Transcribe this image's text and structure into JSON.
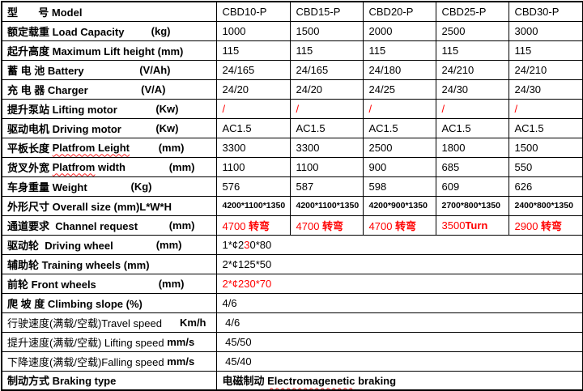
{
  "colors": {
    "accent_red": "#ff0000",
    "border": "#000000",
    "background": "#ffffff"
  },
  "table": {
    "models": [
      "CBD10-P",
      "CBD15-P",
      "CBD20-P",
      "CBD25-P",
      "CBD30-P"
    ],
    "rows": [
      {
        "name": "model-row",
        "label": [
          {
            "t": "型       号 Model",
            "b": 1
          }
        ],
        "cells": [
          [
            {
              "t": "CBD10-P"
            }
          ],
          [
            {
              "t": "CBD15-P"
            }
          ],
          [
            {
              "t": "CBD20-P"
            }
          ],
          [
            {
              "t": "CBD25-P"
            }
          ],
          [
            {
              "t": "CBD30-P"
            }
          ]
        ]
      },
      {
        "name": "load-capacity-row",
        "label": [
          {
            "t": "额定载重 Load Capacity",
            "b": 1
          }
        ],
        "unit": {
          "t": "(kg)",
          "b": 1
        },
        "cells": [
          [
            {
              "t": "1000"
            }
          ],
          [
            {
              "t": "1500"
            }
          ],
          [
            {
              "t": "2000"
            }
          ],
          [
            {
              "t": "2500"
            }
          ],
          [
            {
              "t": "3000"
            }
          ]
        ]
      },
      {
        "name": "lift-height-row",
        "label": [
          {
            "t": "起升高度 Maximum Lift height (mm)",
            "b": 1
          }
        ],
        "cells": [
          [
            {
              "t": "115"
            }
          ],
          [
            {
              "t": "115"
            }
          ],
          [
            {
              "t": "115"
            }
          ],
          [
            {
              "t": "115"
            }
          ],
          [
            {
              "t": "115"
            }
          ]
        ]
      },
      {
        "name": "battery-row",
        "label": [
          {
            "t": "蓄 电 池 Battery",
            "b": 1
          }
        ],
        "unit": {
          "t": "(V/Ah)",
          "b": 1
        },
        "cells": [
          [
            {
              "t": "24/165"
            }
          ],
          [
            {
              "t": "24/165"
            }
          ],
          [
            {
              "t": "24/180"
            }
          ],
          [
            {
              "t": "24/210"
            }
          ],
          [
            {
              "t": "24/210"
            }
          ]
        ]
      },
      {
        "name": "charger-row",
        "label": [
          {
            "t": "充 电 器 Charger",
            "b": 1
          }
        ],
        "unit": {
          "t": "(V/A)",
          "b": 1
        },
        "cells": [
          [
            {
              "t": "24/20"
            }
          ],
          [
            {
              "t": "24/20"
            }
          ],
          [
            {
              "t": "24/25"
            }
          ],
          [
            {
              "t": "24/30"
            }
          ],
          [
            {
              "t": "24/30"
            }
          ]
        ]
      },
      {
        "name": "lifting-motor-row",
        "label": [
          {
            "t": "提升泵站 Lifting motor",
            "b": 1
          }
        ],
        "unit": {
          "t": "(Kw)",
          "b": 1
        },
        "cells": [
          [
            {
              "t": "/",
              "red": 1
            }
          ],
          [
            {
              "t": "/",
              "red": 1
            }
          ],
          [
            {
              "t": "/",
              "red": 1
            }
          ],
          [
            {
              "t": "/",
              "red": 1
            }
          ],
          [
            {
              "t": "/",
              "red": 1
            }
          ]
        ]
      },
      {
        "name": "driving-motor-row",
        "label": [
          {
            "t": "驱动电机 Driving motor",
            "b": 1
          }
        ],
        "unit": {
          "t": "(Kw)",
          "b": 1
        },
        "cells": [
          [
            {
              "t": "AC1.5"
            }
          ],
          [
            {
              "t": "AC1.5"
            }
          ],
          [
            {
              "t": "AC1.5"
            }
          ],
          [
            {
              "t": "AC1.5"
            }
          ],
          [
            {
              "t": "AC1.5"
            }
          ]
        ]
      },
      {
        "name": "platform-length-row",
        "label": [
          {
            "t": "平板长度 ",
            "b": 1
          },
          {
            "t": "Platfrom Leight",
            "b": 1,
            "wavy": 1
          }
        ],
        "unit": {
          "t": "(mm)",
          "b": 1
        },
        "cells": [
          [
            {
              "t": "3300"
            }
          ],
          [
            {
              "t": "3300"
            }
          ],
          [
            {
              "t": "2500"
            }
          ],
          [
            {
              "t": "1800"
            }
          ],
          [
            {
              "t": "1500"
            }
          ]
        ]
      },
      {
        "name": "platform-width-row",
        "label": [
          {
            "t": "货叉外宽 ",
            "b": 1
          },
          {
            "t": "Platfrom",
            "b": 1,
            "wavy": 1
          },
          {
            "t": " width",
            "b": 1
          }
        ],
        "unit": {
          "t": "(mm)",
          "b": 1
        },
        "cells": [
          [
            {
              "t": "1100"
            }
          ],
          [
            {
              "t": "1100"
            }
          ],
          [
            {
              "t": "900"
            }
          ],
          [
            {
              "t": "685"
            }
          ],
          [
            {
              "t": "550"
            }
          ]
        ]
      },
      {
        "name": "weight-row",
        "label": [
          {
            "t": "车身重量 Weight",
            "b": 1
          }
        ],
        "unit": {
          "t": "(Kg)",
          "b": 1
        },
        "cells": [
          [
            {
              "t": "576"
            }
          ],
          [
            {
              "t": "587"
            }
          ],
          [
            {
              "t": "598"
            }
          ],
          [
            {
              "t": "609"
            }
          ],
          [
            {
              "t": "626"
            }
          ]
        ]
      },
      {
        "name": "overall-size-row",
        "label": [
          {
            "t": "外形尺寸 Overall size (mm)L*W*H",
            "b": 1
          }
        ],
        "small": 1,
        "cells": [
          [
            {
              "t": "4200*1100*1350",
              "b": 1
            }
          ],
          [
            {
              "t": "4200*1100*1350",
              "b": 1
            }
          ],
          [
            {
              "t": "4200*900*1350",
              "b": 1
            }
          ],
          [
            {
              "t": "2700*800*1350",
              "b": 1
            }
          ],
          [
            {
              "t": "2400*800*1350",
              "b": 1
            }
          ]
        ]
      },
      {
        "name": "channel-request-row",
        "label": [
          {
            "t": "通道要求  Channel request",
            "b": 1
          }
        ],
        "unit": {
          "t": "(mm)",
          "b": 1
        },
        "cells": [
          [
            {
              "t": "4700 ",
              "red": 1
            },
            {
              "t": "转弯",
              "red": 1,
              "b": 1
            }
          ],
          [
            {
              "t": "4700 ",
              "red": 1
            },
            {
              "t": "转弯",
              "red": 1,
              "b": 1
            }
          ],
          [
            {
              "t": "4700 ",
              "red": 1
            },
            {
              "t": "转弯",
              "red": 1,
              "b": 1
            }
          ],
          [
            {
              "t": "3500",
              "red": 1
            },
            {
              "t": "Turn",
              "red": 1,
              "b": 1
            }
          ],
          [
            {
              "t": "2900 ",
              "red": 1
            },
            {
              "t": "转弯",
              "red": 1,
              "b": 1
            }
          ]
        ]
      },
      {
        "name": "driving-wheel-row",
        "label": [
          {
            "t": "驱动轮  Driving wheel",
            "b": 1
          }
        ],
        "unit": {
          "t": "(mm)",
          "b": 1
        },
        "merged": [
          {
            "t": "1*¢2"
          },
          {
            "t": "3",
            "red": 1
          },
          {
            "t": "0*80"
          }
        ]
      },
      {
        "name": "training-wheels-row",
        "label": [
          {
            "t": "辅助轮 Training wheels (mm)",
            "b": 1
          }
        ],
        "merged": [
          {
            "t": "2*¢125*50"
          }
        ]
      },
      {
        "name": "front-wheels-row",
        "label": [
          {
            "t": "前轮 Front wheels",
            "b": 1
          }
        ],
        "unit": {
          "t": "(mm)",
          "b": 1
        },
        "merged": [
          {
            "t": "2*¢230*70",
            "red": 1
          }
        ]
      },
      {
        "name": "climbing-slope-row",
        "label": [
          {
            "t": "爬 坡 度 Climbing slope (%)",
            "b": 1
          }
        ],
        "merged": [
          {
            "t": "4/6"
          }
        ]
      },
      {
        "name": "travel-speed-row",
        "label": [
          {
            "t": "行驶速度(满载/空载)Travel speed"
          }
        ],
        "unit": {
          "t": "Km/h",
          "b": 1
        },
        "merged": [
          {
            "t": " 4/6"
          }
        ]
      },
      {
        "name": "lifting-speed-row",
        "label": [
          {
            "t": "提升速度(满载/空载) Lifting speed "
          },
          {
            "t": "mm/s",
            "b": 1
          }
        ],
        "merged": [
          {
            "t": " 45/50"
          }
        ]
      },
      {
        "name": "falling-speed-row",
        "label": [
          {
            "t": "下降速度(满载/空载)Falling speed "
          },
          {
            "t": "mm/s",
            "b": 1
          }
        ],
        "merged": [
          {
            "t": " 45/40"
          }
        ]
      },
      {
        "name": "braking-type-row",
        "label": [
          {
            "t": "制动方式 Braking type",
            "b": 1
          }
        ],
        "merged": [
          {
            "t": "电磁制动 ",
            "b": 1
          },
          {
            "t": "Electromagenetic",
            "b": 1,
            "wavy": 1
          },
          {
            "t": " braking",
            "b": 1
          }
        ]
      }
    ]
  }
}
